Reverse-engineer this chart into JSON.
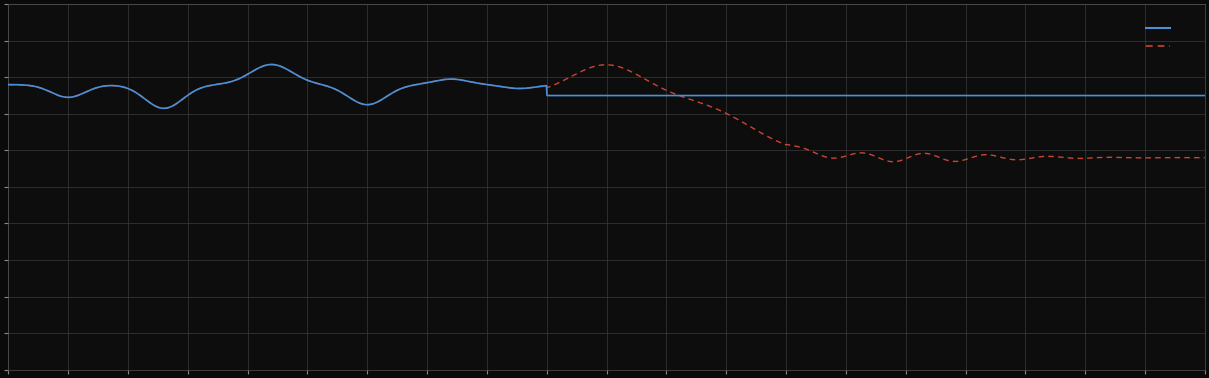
{
  "background_color": "#0a0a0a",
  "axes_facecolor": "#0d0d0d",
  "grid_color": "#3a3a3a",
  "line1_color": "#4a90d9",
  "line2_color": "#cc4433",
  "figsize": [
    12.09,
    3.78
  ],
  "dpi": 100,
  "xlim": [
    0,
    100
  ],
  "ylim": [
    0,
    10
  ],
  "spine_color": "#555555",
  "tick_color": "#888888"
}
